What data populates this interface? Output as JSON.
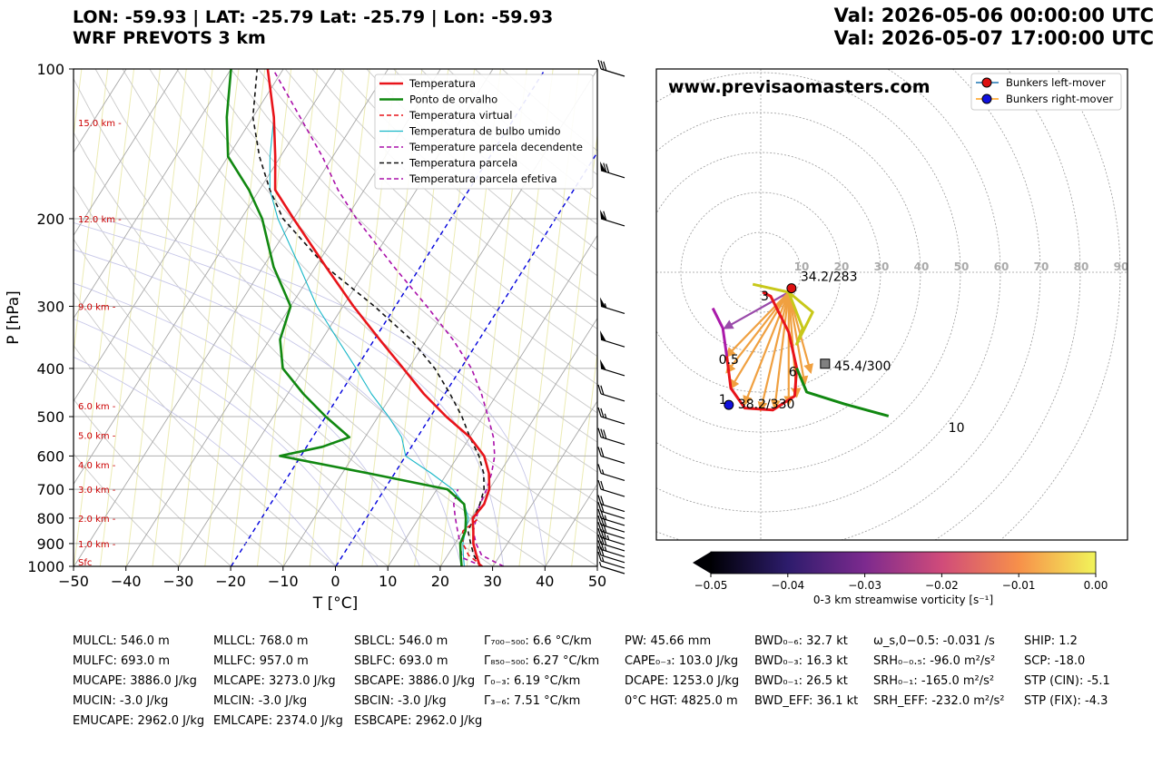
{
  "header": {
    "line1": "LON: -59.93 | LAT: -25.79 Lat: -25.79 | Lon: -59.93",
    "line2": "WRF PREVOTS 3 km",
    "valid1": "Val: 2026-05-06 00:00:00 UTC",
    "valid2": "Val: 2026-05-07 17:00:00 UTC"
  },
  "colors": {
    "temperature": "#e8141a",
    "dewpoint": "#118811",
    "virtual": "#e8141a",
    "wetbulb": "#18b7c8",
    "parcel_down": "#aa10aa",
    "parcel": "#111111",
    "parcel_eff": "#aa10aa",
    "isotherm_zero": "#0000dd",
    "height_label": "#cc0000"
  },
  "chart_data": [
    {
      "type": "line",
      "name": "skew-t",
      "xlabel": "T [°C]",
      "ylabel": "P [hPa]",
      "xlim": [
        -50,
        50
      ],
      "ylim": [
        1000,
        100
      ],
      "y_scale": "log",
      "grid": true,
      "x_ticks": [
        "−50",
        "−40",
        "−30",
        "−20",
        "−10",
        "0",
        "10",
        "20",
        "30",
        "40",
        "50"
      ],
      "x_tick_values": [
        -50,
        -40,
        -30,
        -20,
        -10,
        0,
        10,
        20,
        30,
        40,
        50
      ],
      "y_ticks": [
        100,
        200,
        300,
        400,
        500,
        600,
        700,
        800,
        900,
        1000
      ],
      "legend_position": "top-right",
      "legend": [
        {
          "label": "Temperatura",
          "key": "temperature",
          "dash": "solid"
        },
        {
          "label": "Ponto de orvalho",
          "key": "dewpoint",
          "dash": "solid"
        },
        {
          "label": "Temperatura virtual",
          "key": "virtual",
          "dash": "dashed"
        },
        {
          "label": "Temperatura de bulbo umido",
          "key": "wetbulb",
          "dash": "thin"
        },
        {
          "label": "Temperature parcela decendente",
          "key": "parcel_down",
          "dash": "dashed"
        },
        {
          "label": "Temperatura parcela",
          "key": "parcel",
          "dash": "dashed"
        },
        {
          "label": "Temperatura parcela efetiva",
          "key": "parcel_eff",
          "dash": "dashed"
        }
      ],
      "height_labels": [
        {
          "p": 1000,
          "label": "Sfc"
        },
        {
          "p": 900,
          "label": "1.0 km -"
        },
        {
          "p": 800,
          "label": "2.0 km -"
        },
        {
          "p": 700,
          "label": "3.0 km -"
        },
        {
          "p": 625,
          "label": "4.0 km -"
        },
        {
          "p": 545,
          "label": "5.0 km -"
        },
        {
          "p": 475,
          "label": "6.0 km -"
        },
        {
          "p": 300,
          "label": "9.0 km -"
        },
        {
          "p": 200,
          "label": "12.0 km -"
        },
        {
          "p": 128,
          "label": "15.0 km -"
        }
      ],
      "series": {
        "temperature": [
          [
            1000,
            27.5
          ],
          [
            950,
            25.5
          ],
          [
            900,
            23.5
          ],
          [
            850,
            22
          ],
          [
            800,
            20.3
          ],
          [
            750,
            20.8
          ],
          [
            700,
            20
          ],
          [
            650,
            18
          ],
          [
            600,
            15
          ],
          [
            550,
            10
          ],
          [
            500,
            3
          ],
          [
            450,
            -4
          ],
          [
            400,
            -11
          ],
          [
            350,
            -19
          ],
          [
            300,
            -28
          ],
          [
            250,
            -38
          ],
          [
            200,
            -50
          ],
          [
            175,
            -57
          ],
          [
            150,
            -61
          ],
          [
            125,
            -66
          ],
          [
            100,
            -73
          ]
        ],
        "dewpoint": [
          [
            1000,
            24
          ],
          [
            950,
            22.5
          ],
          [
            900,
            21
          ],
          [
            850,
            20.5
          ],
          [
            800,
            19
          ],
          [
            750,
            17
          ],
          [
            700,
            12
          ],
          [
            650,
            -5
          ],
          [
            600,
            -24
          ],
          [
            575,
            -17
          ],
          [
            550,
            -13
          ],
          [
            500,
            -20
          ],
          [
            450,
            -27
          ],
          [
            400,
            -34
          ],
          [
            350,
            -38
          ],
          [
            300,
            -40
          ],
          [
            250,
            -48
          ],
          [
            200,
            -56
          ],
          [
            175,
            -62
          ],
          [
            150,
            -70
          ],
          [
            125,
            -75
          ],
          [
            100,
            -80
          ]
        ],
        "virtual": [
          [
            1000,
            28
          ],
          [
            950,
            24
          ],
          [
            900,
            21.5
          ],
          [
            850,
            20
          ],
          [
            800,
            21.5
          ]
        ],
        "wetbulb": [
          [
            1000,
            24.5
          ],
          [
            950,
            23
          ],
          [
            900,
            21.5
          ],
          [
            850,
            20.5
          ],
          [
            800,
            19.5
          ],
          [
            750,
            17
          ],
          [
            700,
            13
          ],
          [
            650,
            7
          ],
          [
            600,
            0
          ],
          [
            550,
            -3
          ],
          [
            500,
            -8
          ],
          [
            450,
            -14
          ],
          [
            400,
            -20
          ],
          [
            350,
            -27
          ],
          [
            300,
            -35
          ],
          [
            250,
            -43
          ],
          [
            200,
            -53
          ],
          [
            175,
            -58
          ],
          [
            150,
            -62
          ],
          [
            125,
            -66
          ],
          [
            100,
            -73
          ]
        ],
        "parcel_down": [
          [
            1000,
            28
          ],
          [
            960,
            23
          ],
          [
            900,
            21
          ],
          [
            850,
            19
          ],
          [
            800,
            17
          ],
          [
            750,
            15
          ],
          [
            700,
            14
          ]
        ],
        "parcel": [
          [
            1000,
            27.5
          ],
          [
            950,
            25
          ],
          [
            900,
            23
          ],
          [
            850,
            21
          ],
          [
            800,
            20.5
          ],
          [
            750,
            20
          ],
          [
            700,
            19
          ],
          [
            650,
            17
          ],
          [
            600,
            14
          ],
          [
            550,
            10
          ],
          [
            500,
            6
          ],
          [
            450,
            1
          ],
          [
            400,
            -5
          ],
          [
            350,
            -13
          ],
          [
            300,
            -24
          ],
          [
            250,
            -38
          ],
          [
            200,
            -52
          ],
          [
            175,
            -58
          ],
          [
            150,
            -64
          ],
          [
            125,
            -70
          ],
          [
            100,
            -75
          ]
        ],
        "parcel_eff": [
          [
            1000,
            32
          ],
          [
            950,
            26.5
          ],
          [
            900,
            24
          ],
          [
            850,
            22
          ],
          [
            800,
            21
          ],
          [
            750,
            20
          ],
          [
            700,
            19.5
          ],
          [
            650,
            18.5
          ],
          [
            600,
            17
          ],
          [
            550,
            14.5
          ],
          [
            500,
            11
          ],
          [
            450,
            7
          ],
          [
            400,
            2
          ],
          [
            350,
            -5
          ],
          [
            300,
            -14
          ],
          [
            250,
            -25
          ],
          [
            200,
            -38
          ],
          [
            175,
            -45
          ],
          [
            150,
            -52
          ],
          [
            125,
            -61
          ],
          [
            100,
            -72
          ]
        ]
      },
      "wind_barbs": [
        {
          "p": 1000,
          "flags": 0,
          "full": 0,
          "half": 1
        },
        {
          "p": 975,
          "flags": 0,
          "full": 1,
          "half": 1
        },
        {
          "p": 950,
          "flags": 0,
          "full": 2,
          "half": 0
        },
        {
          "p": 925,
          "flags": 0,
          "full": 2,
          "half": 1
        },
        {
          "p": 900,
          "flags": 0,
          "full": 3,
          "half": 0
        },
        {
          "p": 875,
          "flags": 0,
          "full": 3,
          "half": 1
        },
        {
          "p": 850,
          "flags": 0,
          "full": 3,
          "half": 0
        },
        {
          "p": 825,
          "flags": 0,
          "full": 3,
          "half": 0
        },
        {
          "p": 800,
          "flags": 0,
          "full": 2,
          "half": 1
        },
        {
          "p": 775,
          "flags": 0,
          "full": 2,
          "half": 0
        },
        {
          "p": 750,
          "flags": 0,
          "full": 2,
          "half": 0
        },
        {
          "p": 700,
          "flags": 0,
          "full": 2,
          "half": 0
        },
        {
          "p": 650,
          "flags": 0,
          "full": 1,
          "half": 1
        },
        {
          "p": 600,
          "flags": 0,
          "full": 2,
          "half": 0
        },
        {
          "p": 550,
          "flags": 0,
          "full": 3,
          "half": 0
        },
        {
          "p": 500,
          "flags": 0,
          "full": 2,
          "half": 1
        },
        {
          "p": 450,
          "flags": 0,
          "full": 2,
          "half": 0
        },
        {
          "p": 400,
          "flags": 1,
          "full": 0,
          "half": 0
        },
        {
          "p": 350,
          "flags": 1,
          "full": 0,
          "half": 0
        },
        {
          "p": 300,
          "flags": 1,
          "full": 0,
          "half": 1
        },
        {
          "p": 200,
          "flags": 1,
          "full": 1,
          "half": 0
        },
        {
          "p": 160,
          "flags": 1,
          "full": 2,
          "half": 0
        },
        {
          "p": 100,
          "flags": 0,
          "full": 3,
          "half": 0
        }
      ]
    },
    {
      "type": "scatter",
      "name": "hodograph",
      "title": "www.previsaomasters.com",
      "ring_labels": [
        "10",
        "20",
        "30",
        "40",
        "50",
        "60",
        "70",
        "80",
        "90"
      ],
      "ring_values": [
        10,
        20,
        30,
        40,
        50,
        60,
        70,
        80,
        90
      ],
      "range": [
        -40,
        60
      ],
      "legend_position": "top-right",
      "legend": [
        {
          "label": "Bunkers left-mover",
          "color": "#dd1111"
        },
        {
          "label": "Bunkers right-mover",
          "color": "#1111dd"
        }
      ],
      "markers": [
        {
          "label": "34.2/283",
          "u": 7.7,
          "v": -4.0,
          "color": "#dd1111"
        },
        {
          "label": "38.2/330",
          "u": -8.0,
          "v": -33.2,
          "color": "#1111dd"
        },
        {
          "label": "45.4/300",
          "u": 16.1,
          "v": -22.9,
          "color": "#808080"
        }
      ],
      "height_labels": [
        {
          "label": "0.5",
          "u": -8.0,
          "v": -23.0
        },
        {
          "label": "1",
          "u": -9.5,
          "v": -33.0
        },
        {
          "label": "3",
          "u": 1.0,
          "v": -7.0
        },
        {
          "label": "6",
          "u": 8.0,
          "v": -26.0
        },
        {
          "label": "10",
          "u": 49.0,
          "v": -40.0
        }
      ],
      "segments": [
        {
          "color": "#aa1aaa",
          "points": [
            [
              -12.0,
              -9.0
            ],
            [
              -9.5,
              -14.0
            ],
            [
              -8.5,
              -21.0
            ]
          ]
        },
        {
          "color": "#e8141a",
          "points": [
            [
              -8.5,
              -21.0
            ],
            [
              -7.5,
              -29.0
            ],
            [
              -4.0,
              -34.0
            ],
            [
              3.0,
              -34.5
            ],
            [
              8.5,
              -31.0
            ],
            [
              9.0,
              -24.0
            ],
            [
              7.0,
              -15.0
            ],
            [
              2.5,
              -6.0
            ],
            [
              0.5,
              -5.0
            ]
          ]
        },
        {
          "color": "#118811",
          "points": [
            [
              9.0,
              -24.0
            ],
            [
              11.5,
              -30.0
            ],
            [
              21.0,
              -33.0
            ],
            [
              32.0,
              -36.0
            ]
          ]
        },
        {
          "color": "#c8c81a",
          "points": [
            [
              -2.0,
              -3.0
            ],
            [
              7.0,
              -5.0
            ],
            [
              13.0,
              -10.0
            ],
            [
              9.0,
              -18.0
            ],
            [
              10.5,
              -14.0
            ],
            [
              7.0,
              -5.0
            ]
          ]
        }
      ],
      "shear_arrows": [
        {
          "from": [
            7.0,
            -5.0
          ],
          "to": [
            -9.0,
            -14.0
          ],
          "color": "#9a4aaa"
        },
        {
          "from": [
            7.0,
            -5.0
          ],
          "to": [
            -8.5,
            -21.0
          ],
          "color": "#f0a040"
        },
        {
          "from": [
            7.0,
            -5.0
          ],
          "to": [
            -8.5,
            -25.0
          ],
          "color": "#f0a040"
        },
        {
          "from": [
            7.0,
            -5.0
          ],
          "to": [
            -7.5,
            -29.0
          ],
          "color": "#f0a040"
        },
        {
          "from": [
            7.0,
            -5.0
          ],
          "to": [
            -4.0,
            -33.0
          ],
          "color": "#f0a040"
        },
        {
          "from": [
            7.0,
            -5.0
          ],
          "to": [
            0.0,
            -34.5
          ],
          "color": "#f0a040"
        },
        {
          "from": [
            7.0,
            -5.0
          ],
          "to": [
            3.5,
            -34.0
          ],
          "color": "#f0a040"
        },
        {
          "from": [
            7.0,
            -5.0
          ],
          "to": [
            7.0,
            -33.0
          ],
          "color": "#f0a040"
        },
        {
          "from": [
            7.0,
            -5.0
          ],
          "to": [
            9.0,
            -31.0
          ],
          "color": "#f0a040"
        },
        {
          "from": [
            7.0,
            -5.0
          ],
          "to": [
            11.0,
            -28.0
          ],
          "color": "#f0a040"
        },
        {
          "from": [
            7.0,
            -5.0
          ],
          "to": [
            12.5,
            -25.0
          ],
          "color": "#f0a040"
        }
      ],
      "colorbar": {
        "label": "0-3 km streamwise vorticity [s⁻¹]",
        "ticks": [
          "−0.05",
          "−0.04",
          "−0.03",
          "−0.02",
          "−0.01",
          "0.00"
        ],
        "range": [
          -0.05,
          0.0
        ]
      }
    }
  ],
  "indices": [
    [
      "MULCL: 546.0 m",
      "MULFC: 693.0 m",
      "MUCAPE: 3886.0 J/kg",
      "MUCIN: -3.0 J/kg",
      "EMUCAPE: 2962.0 J/kg"
    ],
    [
      "MLLCL: 768.0 m",
      "MLLFC: 957.0 m",
      "MLCAPE: 3273.0 J/kg",
      "MLCIN: -3.0 J/kg",
      "EMLCAPE: 2374.0 J/kg"
    ],
    [
      "SBLCL: 546.0 m",
      "SBLFC: 693.0 m",
      "SBCAPE: 3886.0 J/kg",
      "SBCIN: -3.0 J/kg",
      "ESBCAPE: 2962.0 J/kg"
    ],
    [
      "Γ₇₀₀₋₅₀₀: 6.6 °C/km",
      "Γ₈₅₀₋₅₀₀: 6.27 °C/km",
      "Γ₀₋₃: 6.19 °C/km",
      "Γ₃₋₆: 7.51 °C/km"
    ],
    [
      "PW: 45.66 mm",
      "CAPE₀₋₃: 103.0 J/kg",
      "DCAPE: 1253.0 J/kg",
      "0°C HGT: 4825.0 m"
    ],
    [
      "BWD₀₋₆: 32.7 kt",
      "BWD₀₋₃: 16.3 kt",
      "BWD₀₋₁: 26.5 kt",
      "BWD_EFF: 36.1 kt"
    ],
    [
      "ω_s,0−0.5: -0.031 /s",
      "SRH₀₋₀.₅: -96.0 m²/s²",
      "SRH₀₋₁: -165.0 m²/s²",
      "SRH_EFF: -232.0 m²/s²"
    ],
    [
      "SHIP: 1.2",
      "SCP: -18.0",
      "STP (CIN): -5.1",
      "STP (FIX): -4.3"
    ]
  ]
}
